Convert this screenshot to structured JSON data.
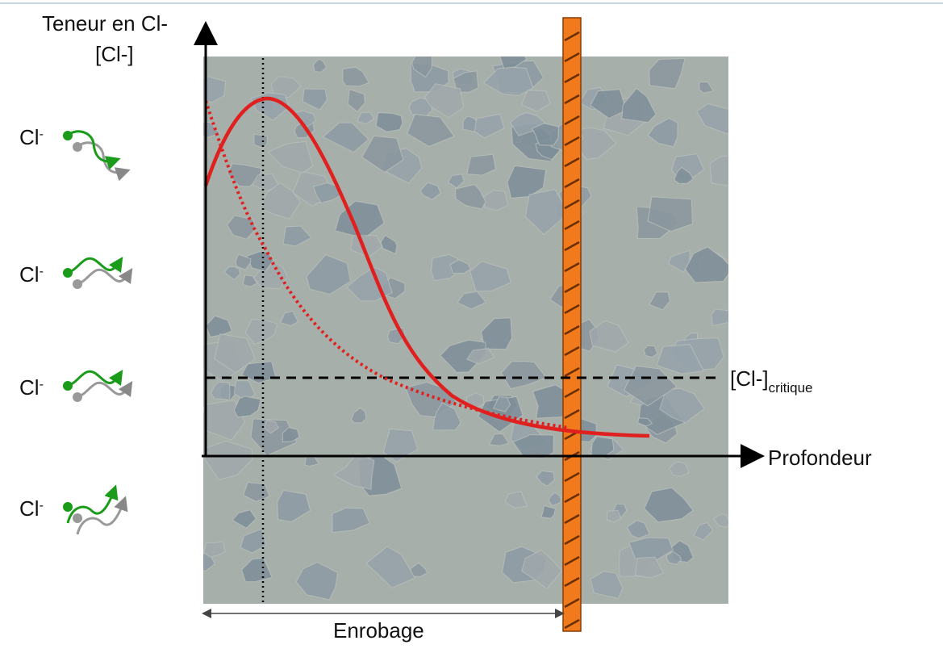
{
  "axis": {
    "y_label_line1": "Teneur en Cl-",
    "y_label_line2": "[Cl-]",
    "x_label": "Profondeur"
  },
  "ions": [
    {
      "base": "Cl",
      "sup": "-"
    },
    {
      "base": "Cl",
      "sup": "-"
    },
    {
      "base": "Cl",
      "sup": "-"
    },
    {
      "base": "Cl",
      "sup": "-"
    }
  ],
  "threshold": {
    "base": "[Cl-]",
    "sub": "critique"
  },
  "cover": {
    "label": "Enrobage"
  }
}
